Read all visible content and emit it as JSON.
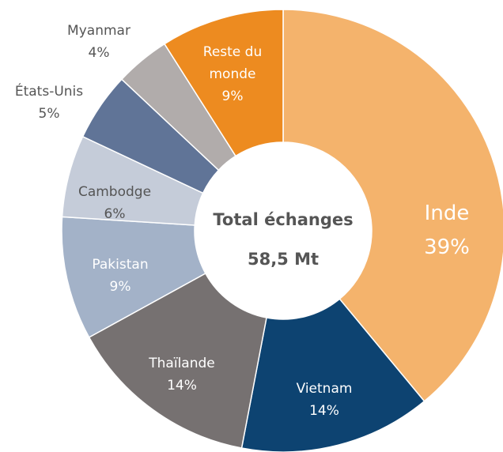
{
  "chart_data": {
    "type": "donut",
    "center_title": "Total échanges",
    "center_value": "58,5 Mt",
    "categories": [
      "Inde",
      "Vietnam",
      "Thaïlande",
      "Pakistan",
      "Cambodge",
      "États-Unis",
      "Myanmar",
      "Reste du monde"
    ],
    "values": [
      39,
      14,
      14,
      9,
      6,
      5,
      4,
      9
    ],
    "value_labels": [
      "39%",
      "14%",
      "14%",
      "9%",
      "6%",
      "5%",
      "4%",
      "9%"
    ],
    "colors": [
      "#f4b36c",
      "#0d4371",
      "#767171",
      "#a3b2c8",
      "#c5ccd9",
      "#607497",
      "#b1acab",
      "#ed8b20"
    ]
  }
}
